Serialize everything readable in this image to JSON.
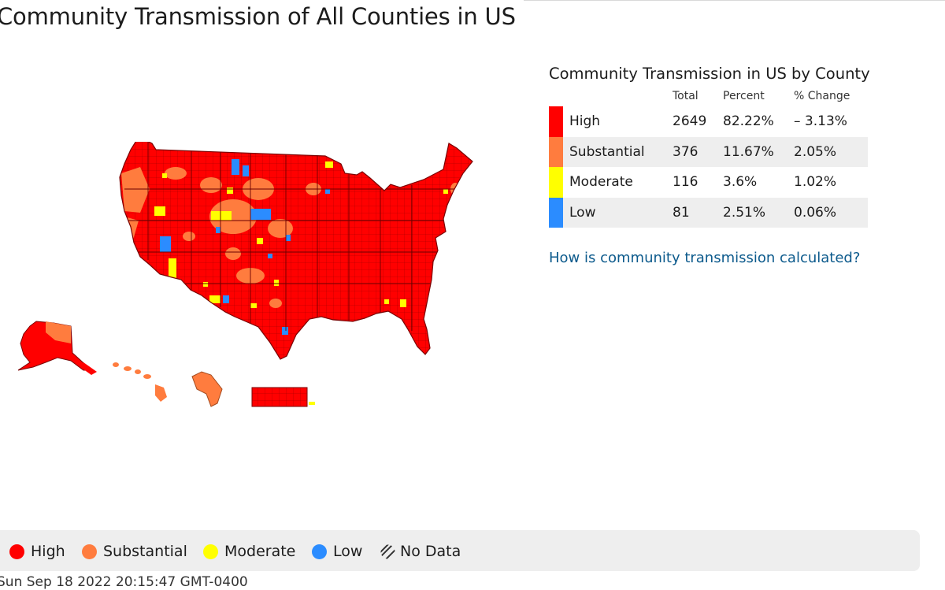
{
  "page": {
    "title": "Community Transmission of All Counties in US",
    "timestamp": "Sun Sep 18 2022 20:15:47 GMT-0400"
  },
  "colors": {
    "high": "#ff0000",
    "substantial": "#ff7c3e",
    "moderate": "#ffff00",
    "low": "#2b8cff",
    "border": "#9a0000"
  },
  "summary": {
    "title": "Community Transmission in US by County",
    "columns": {
      "total": "Total",
      "percent": "Percent",
      "change": "% Change"
    },
    "rows": [
      {
        "level": "high",
        "label": "High",
        "total": "2649",
        "percent": "82.22%",
        "change": "– 3.13%"
      },
      {
        "level": "substantial",
        "label": "Substantial",
        "total": "376",
        "percent": "11.67%",
        "change": "2.05%"
      },
      {
        "level": "moderate",
        "label": "Moderate",
        "total": "116",
        "percent": "3.6%",
        "change": "1.02%"
      },
      {
        "level": "low",
        "label": "Low",
        "total": "81",
        "percent": "2.51%",
        "change": "0.06%"
      }
    ],
    "link": "How is community transmission calculated?"
  },
  "legend": {
    "high": "High",
    "substantial": "Substantial",
    "moderate": "Moderate",
    "low": "Low",
    "no_data": "No Data"
  },
  "map": {
    "regions": [
      "Contiguous US",
      "Alaska",
      "Hawaii",
      "Guam",
      "Puerto Rico"
    ],
    "dominant_level": "high"
  }
}
